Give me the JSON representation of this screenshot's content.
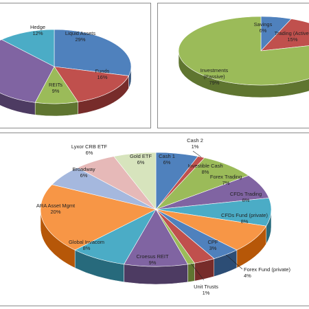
{
  "chart_data": [
    {
      "type": "pie",
      "title": "",
      "legend": "none",
      "slices": [
        {
          "label": "Liquid Assets",
          "value": 29,
          "pct_label": "29%",
          "color": "#4f81bd",
          "side": "#2c4d75"
        },
        {
          "label": "Funds",
          "value": 16,
          "pct_label": "16%",
          "color": "#c0504d",
          "side": "#772c2a"
        },
        {
          "label": "REITs",
          "value": 9,
          "pct_label": "9%",
          "color": "#9bbb59",
          "side": "#5f7530"
        },
        {
          "label": "",
          "value": 34,
          "pct_label": "",
          "color": "#8064a2",
          "side": "#4d3b62"
        },
        {
          "label": "Hedge",
          "value": 12,
          "pct_label": "12%",
          "color": "#4bacc6",
          "side": "#276a7c"
        }
      ]
    },
    {
      "type": "pie",
      "title": "",
      "legend": "none",
      "slices": [
        {
          "label": "Savings",
          "value": 6,
          "pct_label": "6%",
          "color": "#4f81bd",
          "side": "#2c4d75"
        },
        {
          "label": "Trading (Active)",
          "value": 15,
          "pct_label": "15%",
          "color": "#c0504d",
          "side": "#772c2a"
        },
        {
          "label": "Investments (Passive)",
          "value": 79,
          "pct_label": "79%",
          "color": "#9bbb59",
          "side": "#5f7530"
        }
      ]
    },
    {
      "type": "pie",
      "title": "",
      "legend": "none",
      "slices": [
        {
          "label": "Cash 1",
          "value": 6,
          "pct_label": "6%",
          "color": "#4f81bd",
          "side": "#2c4d75"
        },
        {
          "label": "Cash 2",
          "value": 1,
          "pct_label": "1%",
          "color": "#c0504d",
          "side": "#772c2a"
        },
        {
          "label": "Investible Cash",
          "value": 8,
          "pct_label": "8%",
          "color": "#9bbb59",
          "side": "#5f7530"
        },
        {
          "label": "Forex Trading",
          "value": 7,
          "pct_label": "7%",
          "color": "#8064a2",
          "side": "#4d3b62"
        },
        {
          "label": "CFDs Trading",
          "value": 8,
          "pct_label": "8%",
          "color": "#4bacc6",
          "side": "#276a7c"
        },
        {
          "label": "CFDs Fund (private)",
          "value": 8,
          "pct_label": "8%",
          "color": "#f79646",
          "side": "#b65708"
        },
        {
          "label": "Forex Fund (private)",
          "value": 4,
          "pct_label": "4%",
          "color": "#4f81bd",
          "side": "#2c4d75"
        },
        {
          "label": "CPF",
          "value": 3,
          "pct_label": "3%",
          "color": "#c0504d",
          "side": "#772c2a"
        },
        {
          "label": "Unit Trusts",
          "value": 1,
          "pct_label": "1%",
          "color": "#9bbb59",
          "side": "#5f7530"
        },
        {
          "label": "Croesus REIT",
          "value": 9,
          "pct_label": "9%",
          "color": "#8064a2",
          "side": "#4d3b62"
        },
        {
          "label": "Global Invacom",
          "value": 8,
          "pct_label": "8%",
          "color": "#4bacc6",
          "side": "#276a7c"
        },
        {
          "label": "ARA Asset Mgmt",
          "value": 20,
          "pct_label": "20%",
          "color": "#f79646",
          "side": "#b65708"
        },
        {
          "label": "Broadway",
          "value": 6,
          "pct_label": "6%",
          "color": "#a5b8de",
          "side": "#6a7fa8"
        },
        {
          "label": "Lyxor CRB ETF",
          "value": 6,
          "pct_label": "6%",
          "color": "#e6b9b8",
          "side": "#a87d7c"
        },
        {
          "label": "Gold ETF",
          "value": 6,
          "pct_label": "6%",
          "color": "#d7e4bd",
          "side": "#9aa87e"
        }
      ]
    }
  ]
}
